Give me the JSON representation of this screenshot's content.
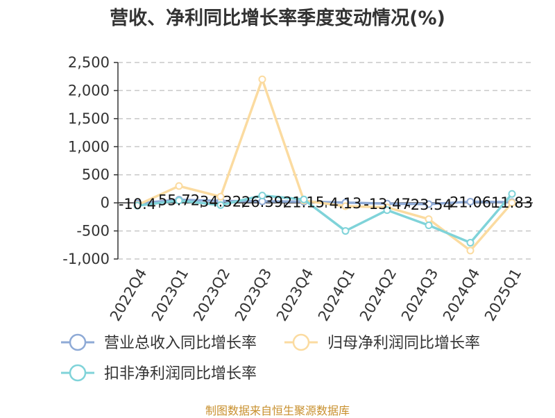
{
  "chart_data": {
    "type": "line",
    "title": "营收、净利同比增长率季度变动情况(%)",
    "categories": [
      "2022Q4",
      "2023Q1",
      "2023Q2",
      "2023Q3",
      "2023Q4",
      "2024Q1",
      "2024Q2",
      "2024Q3",
      "2024Q4",
      "2025Q1"
    ],
    "ylim": [
      -1000,
      2500
    ],
    "yticks": [
      2500,
      2000,
      1500,
      1000,
      500,
      0,
      -500,
      -1000
    ],
    "ytick_labels": [
      "2,500",
      "2,000",
      "1,500",
      "1,000",
      "500",
      "0",
      "-500",
      "-1,000"
    ],
    "grid": true,
    "legend_position": "bottom",
    "series": [
      {
        "name": "营业总收入同比增长率",
        "color": "#8eaad6",
        "values": [
          -10.4,
          55.72,
          34.32,
          26.39,
          21.15,
          4.13,
          -13.47,
          -23.54,
          21.06,
          11.83
        ]
      },
      {
        "name": "归母净利润同比增长率",
        "color": "#fbdba0",
        "values": [
          -40,
          300,
          110,
          2200,
          40,
          -60,
          -80,
          -290,
          -850,
          0
        ]
      },
      {
        "name": "扣非净利润同比增长率",
        "color": "#7fd3d9",
        "values": [
          -50,
          40,
          -40,
          130,
          60,
          -500,
          -130,
          -400,
          -710,
          160
        ]
      }
    ],
    "data_labels": [
      "-10.4",
      "55.72",
      "34.32",
      "26.39",
      "21.15",
      "4.13",
      "-13.47",
      "-23.54",
      "21.06",
      "11.83"
    ]
  },
  "source": "制图数据来自恒生聚源数据库"
}
